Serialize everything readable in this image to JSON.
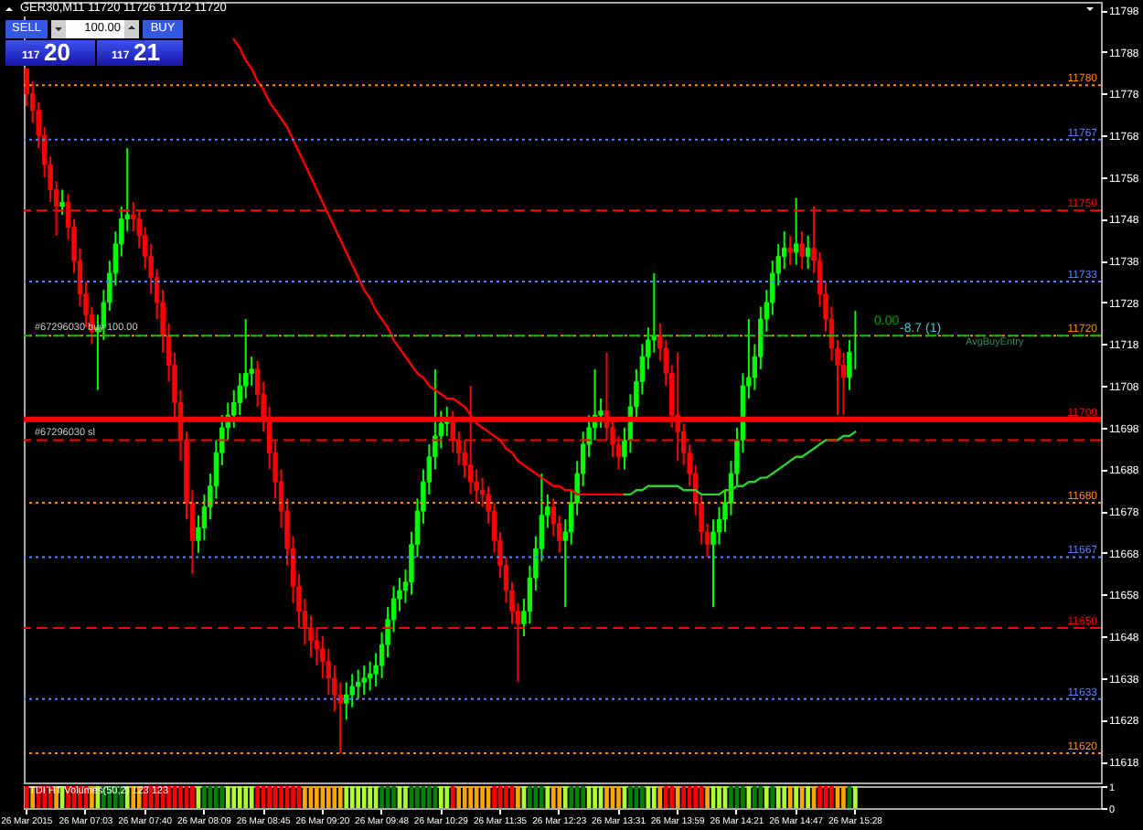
{
  "chart_data": [
    {
      "type": "candlestick",
      "title": "GER30,M11  11720 11726 11712 11720",
      "categories": [
        "26 Mar 2015",
        null,
        null,
        null,
        null,
        null,
        null,
        null,
        null,
        null,
        "26 Mar 07:03",
        null,
        null,
        null,
        null,
        null,
        null,
        null,
        null,
        null,
        "26 Mar 07:40",
        null,
        null,
        null,
        null,
        null,
        null,
        null,
        null,
        null,
        "26 Mar 08:09",
        null,
        null,
        null,
        null,
        null,
        null,
        null,
        null,
        null,
        "26 Mar 08:45",
        null,
        null,
        null,
        null,
        null,
        null,
        null,
        null,
        null,
        "26 Mar 09:20",
        null,
        null,
        null,
        null,
        null,
        null,
        null,
        null,
        null,
        "26 Mar 09:48",
        null,
        null,
        null,
        null,
        null,
        null,
        null,
        null,
        null,
        "26 Mar 10:29",
        null,
        null,
        null,
        null,
        null,
        null,
        null,
        null,
        null,
        "26 Mar 11:35",
        null,
        null,
        null,
        null,
        null,
        null,
        null,
        null,
        null,
        "26 Mar 12:23",
        null,
        null,
        null,
        null,
        null,
        null,
        null,
        null,
        null,
        "26 Mar 13:31",
        null,
        null,
        null,
        null,
        null,
        null,
        null,
        null,
        null,
        "26 Mar 13:59",
        null,
        null,
        null,
        null,
        null,
        null,
        null,
        null,
        null,
        "26 Mar 14:21",
        null,
        null,
        null,
        null,
        null,
        null,
        null,
        null,
        null,
        "26 Mar 14:47",
        null,
        null,
        null,
        null,
        null,
        null,
        null,
        null,
        null,
        "26 Mar 15:28",
        null,
        null,
        null,
        null,
        null,
        null,
        null,
        null,
        null,
        null,
        null,
        null,
        null,
        null,
        null,
        null,
        null,
        null,
        null,
        null,
        null,
        null,
        null,
        null,
        null,
        null,
        null,
        null,
        null,
        null,
        null,
        null,
        null,
        null,
        null,
        null,
        null,
        null,
        null,
        null,
        null
      ],
      "ohlc": [
        [
          11784,
          11784,
          11775,
          11778
        ],
        [
          11778,
          11781,
          11771,
          11774
        ],
        [
          11774,
          11776,
          11765,
          11768
        ],
        [
          11768,
          11770,
          11758,
          11761
        ],
        [
          11761,
          11763,
          11752,
          11755
        ],
        [
          11755,
          11757,
          11744,
          11751
        ],
        [
          11751,
          11755,
          11749,
          11752
        ],
        [
          11752,
          11754,
          11743,
          11746
        ],
        [
          11746,
          11748,
          11735,
          11738
        ],
        [
          11738,
          11741,
          11727,
          11730
        ],
        [
          11730,
          11733,
          11722,
          11725
        ],
        [
          11725,
          11727,
          11718,
          11721
        ],
        [
          11721,
          11725,
          11707,
          11722
        ],
        [
          11722,
          11731,
          11719,
          11728
        ],
        [
          11728,
          11738,
          11726,
          11735
        ],
        [
          11735,
          11745,
          11732,
          11742
        ],
        [
          11742,
          11751,
          11739,
          11748
        ],
        [
          11748,
          11765,
          11745,
          11749
        ],
        [
          11749,
          11752,
          11745,
          11748
        ],
        [
          11748,
          11750,
          11741,
          11744
        ],
        [
          11744,
          11746,
          11736,
          11739
        ],
        [
          11739,
          11742,
          11730,
          11734
        ],
        [
          11734,
          11736,
          11724,
          11728
        ],
        [
          11728,
          11731,
          11716,
          11720
        ],
        [
          11720,
          11723,
          11709,
          11713
        ],
        [
          11713,
          11716,
          11700,
          11704
        ],
        [
          11704,
          11707,
          11690,
          11695
        ],
        [
          11695,
          11697,
          11676,
          11680
        ],
        [
          11680,
          11683,
          11663,
          11671
        ],
        [
          11671,
          11677,
          11668,
          11674
        ],
        [
          11674,
          11682,
          11671,
          11679
        ],
        [
          11679,
          11687,
          11676,
          11684
        ],
        [
          11684,
          11695,
          11681,
          11692
        ],
        [
          11692,
          11701,
          11689,
          11698
        ],
        [
          11698,
          11704,
          11695,
          11701
        ],
        [
          11701,
          11707,
          11698,
          11704
        ],
        [
          11704,
          11711,
          11701,
          11708
        ],
        [
          11708,
          11724,
          11705,
          11711
        ],
        [
          11711,
          11715,
          11708,
          11712
        ],
        [
          11712,
          11714,
          11703,
          11706
        ],
        [
          11706,
          11709,
          11697,
          11700
        ],
        [
          11700,
          11703,
          11688,
          11692
        ],
        [
          11692,
          11695,
          11681,
          11685
        ],
        [
          11685,
          11688,
          11674,
          11678
        ],
        [
          11678,
          11681,
          11665,
          11669
        ],
        [
          11669,
          11672,
          11656,
          11660
        ],
        [
          11660,
          11663,
          11650,
          11654
        ],
        [
          11654,
          11657,
          11646,
          11650
        ],
        [
          11650,
          11653,
          11643,
          11647
        ],
        [
          11647,
          11650,
          11641,
          11645
        ],
        [
          11645,
          11648,
          11638,
          11642
        ],
        [
          11642,
          11645,
          11634,
          11638
        ],
        [
          11638,
          11641,
          11630,
          11634
        ],
        [
          11634,
          11637,
          11620,
          11632
        ],
        [
          11632,
          11637,
          11628,
          11634
        ],
        [
          11634,
          11639,
          11631,
          11636
        ],
        [
          11636,
          11640,
          11633,
          11637
        ],
        [
          11637,
          11641,
          11634,
          11638
        ],
        [
          11638,
          11642,
          11635,
          11639
        ],
        [
          11639,
          11644,
          11636,
          11641
        ],
        [
          11641,
          11649,
          11638,
          11646
        ],
        [
          11646,
          11655,
          11643,
          11652
        ],
        [
          11652,
          11660,
          11649,
          11657
        ],
        [
          11657,
          11662,
          11654,
          11659
        ],
        [
          11659,
          11664,
          11656,
          11661
        ],
        [
          11661,
          11673,
          11658,
          11670
        ],
        [
          11670,
          11681,
          11667,
          11678
        ],
        [
          11678,
          11688,
          11675,
          11685
        ],
        [
          11685,
          11694,
          11682,
          11691
        ],
        [
          11691,
          11712,
          11688,
          11696
        ],
        [
          11696,
          11702,
          11693,
          11699
        ],
        [
          11699,
          11703,
          11696,
          11700
        ],
        [
          11700,
          11702,
          11692,
          11695
        ],
        [
          11695,
          11697,
          11689,
          11692
        ],
        [
          11692,
          11695,
          11686,
          11689
        ],
        [
          11689,
          11708,
          11682,
          11685
        ],
        [
          11685,
          11688,
          11680,
          11683
        ],
        [
          11683,
          11686,
          11679,
          11682
        ],
        [
          11682,
          11684,
          11675,
          11678
        ],
        [
          11678,
          11680,
          11668,
          11671
        ],
        [
          11671,
          11673,
          11662,
          11665
        ],
        [
          11665,
          11667,
          11656,
          11659
        ],
        [
          11659,
          11661,
          11651,
          11654
        ],
        [
          11654,
          11656,
          11637,
          11651
        ],
        [
          11651,
          11657,
          11648,
          11654
        ],
        [
          11654,
          11665,
          11651,
          11662
        ],
        [
          11662,
          11672,
          11659,
          11669
        ],
        [
          11669,
          11687,
          11666,
          11677
        ],
        [
          11677,
          11682,
          11674,
          11679
        ],
        [
          11679,
          11681,
          11672,
          11675
        ],
        [
          11675,
          11677,
          11668,
          11671
        ],
        [
          11671,
          11676,
          11655,
          11673
        ],
        [
          11673,
          11683,
          11670,
          11680
        ],
        [
          11680,
          11690,
          11677,
          11687
        ],
        [
          11687,
          11697,
          11684,
          11694
        ],
        [
          11694,
          11701,
          11691,
          11698
        ],
        [
          11698,
          11712,
          11695,
          11701
        ],
        [
          11701,
          11705,
          11698,
          11702
        ],
        [
          11702,
          11716,
          11695,
          11698
        ],
        [
          11698,
          11700,
          11691,
          11694
        ],
        [
          11694,
          11696,
          11688,
          11691
        ],
        [
          11691,
          11698,
          11688,
          11695
        ],
        [
          11695,
          11706,
          11692,
          11703
        ],
        [
          11703,
          11712,
          11700,
          11709
        ],
        [
          11709,
          11718,
          11706,
          11715
        ],
        [
          11715,
          11722,
          11712,
          11719
        ],
        [
          11719,
          11735,
          11716,
          11720
        ],
        [
          11720,
          11723,
          11714,
          11717
        ],
        [
          11717,
          11719,
          11708,
          11711
        ],
        [
          11711,
          11713,
          11698,
          11701
        ],
        [
          11701,
          11716,
          11690,
          11697
        ],
        [
          11697,
          11699,
          11689,
          11692
        ],
        [
          11692,
          11694,
          11684,
          11687
        ],
        [
          11687,
          11689,
          11677,
          11680
        ],
        [
          11680,
          11682,
          11670,
          11673
        ],
        [
          11673,
          11675,
          11667,
          11670
        ],
        [
          11670,
          11676,
          11655,
          11673
        ],
        [
          11673,
          11679,
          11670,
          11676
        ],
        [
          11676,
          11683,
          11673,
          11680
        ],
        [
          11680,
          11690,
          11677,
          11687
        ],
        [
          11687,
          11698,
          11684,
          11695
        ],
        [
          11695,
          11711,
          11692,
          11708
        ],
        [
          11708,
          11724,
          11705,
          11710
        ],
        [
          11710,
          11718,
          11707,
          11715
        ],
        [
          11715,
          11727,
          11712,
          11724
        ],
        [
          11724,
          11731,
          11721,
          11728
        ],
        [
          11728,
          11738,
          11725,
          11735
        ],
        [
          11735,
          11742,
          11732,
          11739
        ],
        [
          11739,
          11745,
          11736,
          11741
        ],
        [
          11741,
          11744,
          11737,
          11740
        ],
        [
          11740,
          11753,
          11737,
          11742
        ],
        [
          11742,
          11745,
          11736,
          11739
        ],
        [
          11739,
          11744,
          11736,
          11741
        ],
        [
          11741,
          11751,
          11735,
          11738
        ],
        [
          11738,
          11740,
          11727,
          11730
        ],
        [
          11730,
          11733,
          11721,
          11724
        ],
        [
          11724,
          11727,
          11714,
          11717
        ],
        [
          11717,
          11719,
          11701,
          11713
        ],
        [
          11713,
          11716,
          11701,
          11710
        ],
        [
          11710,
          11719,
          11707,
          11716
        ],
        [
          11720,
          11726,
          11712,
          11720
        ],
        null,
        null,
        null,
        null,
        null,
        null,
        null,
        null,
        null,
        null,
        null,
        null,
        null,
        null,
        null,
        null,
        null,
        null,
        null,
        null,
        null,
        null,
        null,
        null,
        null,
        null,
        null,
        null,
        null,
        null,
        null,
        null,
        null,
        null,
        null,
        null,
        null,
        null,
        null,
        null,
        null
      ],
      "colors": [
        "#ff0000",
        "#ff0000",
        "#ff0000",
        "#ff0000",
        "#ff0000",
        "#ff0000",
        "#00ff00",
        "#ff0000",
        "#ff0000",
        "#ff0000",
        "#ff0000",
        "#ff0000",
        "#00ff00",
        "#00ff00",
        "#00ff00",
        "#00ff00",
        "#00ff00",
        "#00ff00",
        "#ff0000",
        "#ff0000",
        "#ff0000",
        "#ff0000",
        "#ff0000",
        "#ff0000",
        "#ff0000",
        "#ff0000",
        "#ff0000",
        "#ff0000",
        "#ff0000",
        "#00ff00",
        "#00ff00",
        "#00ff00",
        "#00ff00",
        "#00ff00",
        "#00ff00",
        "#00ff00",
        "#00ff00",
        "#00ff00",
        "#00ff00",
        "#ff0000",
        "#ff0000",
        "#ff0000",
        "#ff0000",
        "#ff0000",
        "#ff0000",
        "#ff0000",
        "#ff0000",
        "#ff0000",
        "#ff0000",
        "#ff0000",
        "#ff0000",
        "#ff0000",
        "#ff0000",
        "#ff0000",
        "#00ff00",
        "#00ff00",
        "#00ff00",
        "#00ff00",
        "#00ff00",
        "#00ff00",
        "#00ff00",
        "#00ff00",
        "#00ff00",
        "#00ff00",
        "#00ff00",
        "#00ff00",
        "#00ff00",
        "#00ff00",
        "#00ff00",
        "#00ff00",
        "#00ff00",
        "#00ff00",
        "#ff0000",
        "#ff0000",
        "#ff0000",
        "#ff0000",
        "#ff0000",
        "#ff0000",
        "#ff0000",
        "#ff0000",
        "#ff0000",
        "#ff0000",
        "#ff0000",
        "#ff0000",
        "#00ff00",
        "#00ff00",
        "#00ff00",
        "#00ff00",
        "#00ff00",
        "#ff0000",
        "#ff0000",
        "#00ff00",
        "#00ff00",
        "#00ff00",
        "#00ff00",
        "#00ff00",
        "#00ff00",
        "#00ff00",
        "#ff0000",
        "#ff0000",
        "#ff0000",
        "#00ff00",
        "#00ff00",
        "#00ff00",
        "#00ff00",
        "#00ff00",
        "#00ff00",
        "#ff0000",
        "#ff0000",
        "#ff0000",
        "#ff0000",
        "#ff0000",
        "#ff0000",
        "#ff0000",
        "#ff0000",
        "#ff0000",
        "#00ff00",
        "#00ff00",
        "#00ff00",
        "#00ff00",
        "#00ff00",
        "#00ff00",
        "#00ff00",
        "#00ff00",
        "#00ff00",
        "#00ff00",
        "#00ff00",
        "#00ff00",
        "#00ff00",
        "#ff0000",
        "#00ff00",
        "#ff0000",
        "#00ff00",
        "#ff0000",
        "#ff0000",
        "#ff0000",
        "#ff0000",
        "#ff0000",
        "#ff0000",
        "#00ff00",
        "#00ff00",
        null,
        null,
        null,
        null,
        null,
        null,
        null,
        null,
        null,
        null,
        null,
        null,
        null,
        null,
        null,
        null,
        null,
        null,
        null,
        null,
        null,
        null,
        null,
        null,
        null,
        null,
        null,
        null,
        null,
        null,
        null,
        null,
        null,
        null,
        null,
        null,
        null,
        null,
        null,
        null,
        null
      ],
      "series": [
        {
          "type": "line",
          "color": "#ff0000",
          "values": [
            null,
            null,
            null,
            null,
            null,
            null,
            null,
            null,
            null,
            null,
            null,
            null,
            null,
            null,
            null,
            null,
            null,
            null,
            null,
            null,
            null,
            null,
            null,
            null,
            null,
            null,
            null,
            null,
            null,
            null,
            null,
            null,
            null,
            null,
            null,
            11791,
            11789,
            11786,
            11784,
            11781,
            11779,
            11776,
            11774,
            11772,
            11770,
            11767,
            11764,
            11761,
            11758,
            11755,
            11752,
            11749,
            11746,
            11743,
            11740,
            11737,
            11734,
            11731,
            11729,
            11726,
            11724,
            11722,
            11719,
            11717,
            11715,
            11713,
            11711,
            11710,
            11708,
            11707,
            11706,
            11705,
            11705,
            11704,
            11703,
            11701,
            11699,
            11698,
            11697,
            11696,
            11695,
            11693,
            11692,
            11690,
            11689,
            11688,
            11687,
            11686,
            11685,
            11684,
            11684,
            11683,
            11683,
            11682,
            11682,
            11682,
            11682,
            11682,
            11682,
            11682,
            11682,
            11682,
            null,
            null,
            null,
            null,
            null,
            null,
            null,
            null,
            null,
            null,
            null,
            null,
            null,
            null,
            null,
            null,
            null,
            null,
            null,
            null,
            null,
            null,
            null,
            null,
            null,
            null,
            null,
            null,
            null,
            null,
            null,
            null,
            null,
            null,
            null,
            null,
            null,
            null,
            null,
            null,
            null,
            null,
            null,
            null,
            null,
            null,
            null,
            null,
            null,
            null,
            null,
            null,
            null,
            null,
            null,
            null,
            null,
            null,
            null,
            null,
            null,
            null,
            null,
            null,
            null,
            null,
            null,
            null,
            null,
            null,
            null,
            null,
            null,
            null,
            null,
            null,
            null,
            null,
            null,
            null
          ]
        },
        {
          "type": "line",
          "color": "#32cd32",
          "values": [
            null,
            null,
            null,
            null,
            null,
            null,
            null,
            null,
            null,
            null,
            null,
            null,
            null,
            null,
            null,
            null,
            null,
            null,
            null,
            null,
            null,
            null,
            null,
            null,
            null,
            null,
            null,
            null,
            null,
            null,
            null,
            null,
            null,
            null,
            null,
            null,
            null,
            null,
            null,
            null,
            null,
            null,
            null,
            null,
            null,
            null,
            null,
            null,
            null,
            null,
            null,
            null,
            null,
            null,
            null,
            null,
            null,
            null,
            null,
            null,
            null,
            null,
            null,
            null,
            null,
            null,
            null,
            null,
            null,
            null,
            null,
            null,
            null,
            null,
            null,
            null,
            null,
            null,
            null,
            null,
            null,
            null,
            null,
            null,
            null,
            null,
            null,
            null,
            null,
            null,
            null,
            null,
            null,
            null,
            null,
            null,
            null,
            null,
            null,
            null,
            null,
            11682,
            11682,
            11683,
            11683,
            11684,
            11684,
            11684,
            11684,
            11684,
            11684,
            11683,
            11683,
            11683,
            11682,
            11682,
            11682,
            11682,
            11683,
            11683,
            11684,
            11684,
            11685,
            11685,
            11686,
            11686,
            11687,
            11688,
            11689,
            11690,
            11691,
            11691,
            11692,
            11693,
            11694,
            11695,
            11695,
            11695,
            11696,
            11696,
            11697,
            null,
            null,
            null,
            null,
            null,
            null,
            null,
            null,
            null,
            null,
            null,
            null,
            null,
            null,
            null,
            null,
            null,
            null,
            null,
            null,
            null,
            null,
            null,
            null,
            null,
            null,
            null,
            null,
            null,
            null,
            null,
            null,
            null,
            null,
            null,
            null,
            null,
            null,
            null,
            null,
            null
          ]
        }
      ],
      "ylim": [
        11613,
        11800
      ],
      "yticks": [
        11618,
        11628,
        11638,
        11648,
        11658,
        11668,
        11678,
        11688,
        11698,
        11708,
        11718,
        11728,
        11738,
        11748,
        11758,
        11768,
        11778,
        11788,
        11798
      ],
      "ref_lines": [
        {
          "axis": "y",
          "value": 11780,
          "label": "11780",
          "color": "#ff8c00",
          "line_style": "dotted"
        },
        {
          "axis": "y",
          "value": 11767,
          "label": "11767",
          "color": "#5a82ff",
          "line_style": "dotted"
        },
        {
          "axis": "y",
          "value": 11750,
          "label": "11750",
          "color": "#ff0000",
          "line_style": "dashed"
        },
        {
          "axis": "y",
          "value": 11733,
          "label": "11733",
          "color": "#5a82ff",
          "line_style": "dotted"
        },
        {
          "axis": "y",
          "value": 11720,
          "label": "11720",
          "color": "#ff8c00",
          "line_style": "dotted"
        },
        {
          "axis": "y",
          "value": 11720,
          "color": "#00c000",
          "line_style": "dashed"
        },
        {
          "axis": "y",
          "value": 11700,
          "label": "11700",
          "color": "#ff0000",
          "line_style": "solid"
        },
        {
          "axis": "y",
          "value": 11695,
          "color": "#ff0000",
          "line_style": "dashed"
        },
        {
          "axis": "y",
          "value": 11680,
          "label": "11680",
          "color": "#ff8c00",
          "line_style": "dotted"
        },
        {
          "axis": "y",
          "value": 11667,
          "label": "11667",
          "color": "#5a82ff",
          "line_style": "dotted"
        },
        {
          "axis": "y",
          "value": 11650,
          "label": "11650",
          "color": "#ff0000",
          "line_style": "dashed"
        },
        {
          "axis": "y",
          "value": 11633,
          "label": "11633",
          "color": "#5a82ff",
          "line_style": "dotted"
        },
        {
          "axis": "y",
          "value": 11620,
          "label": "11620",
          "color": "#ff8c00",
          "line_style": "dotted"
        }
      ],
      "annotations": [
        {
          "text": "#67296030 buy 100.00",
          "y": 11720
        },
        {
          "text": "#67296030 sl",
          "y": 11695
        },
        {
          "text": "0.00",
          "y": 11720
        },
        {
          "text": "-8.7 (1)",
          "y": 11720
        },
        {
          "text": "AvgBuyEntry",
          "y": 11720
        },
        "SELL",
        "100.00",
        "BUY",
        "117",
        "20",
        "117",
        "21"
      ]
    },
    {
      "type": "bar",
      "title": "TDI HT Volumes(50,2) 123 123",
      "categories": [
        null,
        null,
        null,
        null,
        null,
        null,
        null,
        null,
        null,
        null,
        null,
        null,
        null,
        null,
        null,
        null,
        null,
        null,
        null,
        null,
        null,
        null,
        null,
        null,
        null,
        null,
        null,
        null,
        null,
        null,
        null,
        null,
        null,
        null,
        null,
        null,
        null,
        null,
        null,
        null,
        null,
        null,
        null,
        null,
        null,
        null,
        null,
        null,
        null,
        null,
        null,
        null,
        null,
        null,
        null,
        null,
        null,
        null,
        null,
        null,
        null,
        null,
        null,
        null,
        null,
        null,
        null,
        null,
        null,
        null,
        null,
        null,
        null,
        null,
        null,
        null,
        null,
        null,
        null,
        null,
        null,
        null,
        null,
        null,
        null,
        null,
        null,
        null,
        null,
        null,
        null,
        null,
        null,
        null,
        null,
        null,
        null,
        null,
        null,
        null,
        null,
        null,
        null,
        null,
        null,
        null,
        null,
        null,
        null,
        null,
        null,
        null,
        null,
        null,
        null,
        null,
        null,
        null,
        null,
        null,
        null,
        null,
        null,
        null,
        null,
        null,
        null,
        null,
        null,
        null,
        null,
        null,
        null,
        null,
        null,
        null,
        null,
        null,
        null,
        null,
        null,
        null,
        null,
        null,
        null,
        null,
        null,
        null,
        null,
        null,
        null,
        null,
        null,
        null,
        null,
        null,
        null,
        null,
        null,
        null,
        null,
        null,
        null,
        null,
        null,
        null,
        null,
        null,
        null,
        null,
        null,
        null,
        null,
        null,
        null,
        null,
        null,
        null,
        null,
        null,
        null,
        null
      ],
      "tick_labels": "y",
      "values": [
        1,
        1,
        1,
        1,
        1,
        1,
        1,
        1,
        1,
        1,
        1,
        1,
        1,
        1,
        1,
        1,
        1,
        1,
        1,
        1,
        1,
        1,
        1,
        1,
        1,
        1,
        1,
        1,
        1,
        1,
        1,
        1,
        1,
        1,
        1,
        1,
        1,
        1,
        1,
        1,
        1,
        1,
        1,
        1,
        1,
        1,
        1,
        1,
        1,
        1,
        1,
        1,
        1,
        1,
        1,
        1,
        1,
        1,
        1,
        1,
        1,
        1,
        1,
        1,
        1,
        1,
        1,
        1,
        1,
        1,
        1,
        1,
        1,
        1,
        1,
        1,
        1,
        1,
        1,
        1,
        1,
        1,
        1,
        1,
        1,
        1,
        1,
        1,
        1,
        1,
        1,
        1,
        1,
        1,
        1,
        1,
        1,
        1,
        1,
        1,
        1,
        1,
        1,
        1,
        1,
        1,
        1,
        1,
        1,
        1,
        1,
        1,
        1,
        1,
        1,
        1,
        1,
        1,
        1,
        1,
        1,
        1,
        1,
        1,
        1,
        1,
        1,
        1,
        1,
        1,
        1,
        1,
        1,
        1,
        1,
        1,
        1,
        1,
        1,
        1,
        1,
        null,
        null,
        null,
        null,
        null,
        null,
        null,
        null,
        null,
        null,
        null,
        null,
        null,
        null,
        null,
        null,
        null,
        null,
        null,
        null,
        null,
        null,
        null,
        null,
        null,
        null,
        null,
        null,
        null,
        null,
        null,
        null,
        null,
        null,
        null,
        null,
        null,
        null,
        null,
        null,
        null
      ],
      "colors": [
        "#ff0000",
        "#ffa500",
        "#ff0000",
        "#ff0000",
        "#ff0000",
        "#ffa500",
        "#adff2f",
        "#ff0000",
        "#ff0000",
        "#ff0000",
        "#ff0000",
        "#ffa500",
        "#adff2f",
        "#008000",
        "#008000",
        "#008000",
        "#008000",
        "#adff2f",
        "#ffa500",
        "#ffa500",
        "#ff0000",
        "#ff0000",
        "#ff0000",
        "#ff0000",
        "#ff0000",
        "#ff0000",
        "#ff0000",
        "#ff0000",
        "#ff0000",
        "#adff2f",
        "#008000",
        "#008000",
        "#008000",
        "#008000",
        "#adff2f",
        "#adff2f",
        "#adff2f",
        "#adff2f",
        "#adff2f",
        "#ff0000",
        "#ff0000",
        "#ff0000",
        "#ff0000",
        "#ff0000",
        "#ff0000",
        "#ff0000",
        "#ff0000",
        "#ffa500",
        "#ffa500",
        "#ffa500",
        "#ffa500",
        "#ffa500",
        "#ffa500",
        "#ffa500",
        "#adff2f",
        "#adff2f",
        "#adff2f",
        "#adff2f",
        "#adff2f",
        "#adff2f",
        "#008000",
        "#008000",
        "#008000",
        "#adff2f",
        "#adff2f",
        "#008000",
        "#008000",
        "#008000",
        "#008000",
        "#008000",
        "#adff2f",
        "#adff2f",
        "#ff0000",
        "#ffa500",
        "#ffa500",
        "#ffa500",
        "#ffa500",
        "#ffa500",
        "#ffa500",
        "#ff0000",
        "#ff0000",
        "#ff0000",
        "#ff0000",
        "#ffa500",
        "#adff2f",
        "#008000",
        "#008000",
        "#008000",
        "#adff2f",
        "#ffa500",
        "#ffa500",
        "#adff2f",
        "#008000",
        "#008000",
        "#008000",
        "#adff2f",
        "#adff2f",
        "#adff2f",
        "#ffa500",
        "#ffa500",
        "#ffa500",
        "#adff2f",
        "#008000",
        "#008000",
        "#008000",
        "#adff2f",
        "#adff2f",
        "#ffa500",
        "#ff0000",
        "#ff0000",
        "#ffa500",
        "#ff0000",
        "#ff0000",
        "#ff0000",
        "#ff0000",
        "#ffa500",
        "#adff2f",
        "#adff2f",
        "#adff2f",
        "#008000",
        "#008000",
        "#008000",
        "#adff2f",
        "#008000",
        "#008000",
        "#adff2f",
        "#008000",
        "#adff2f",
        "#adff2f",
        "#ffa500",
        "#adff2f",
        "#ffa500",
        "#adff2f",
        "#ffa500",
        "#ff0000",
        "#ff0000",
        "#ff0000",
        "#ffa500",
        "#ffa500",
        "#008000",
        "#adff2f",
        null,
        null,
        null,
        null,
        null,
        null,
        null,
        null,
        null,
        null,
        null,
        null,
        null,
        null,
        null,
        null,
        null,
        null,
        null,
        null,
        null,
        null,
        null,
        null,
        null,
        null,
        null,
        null,
        null,
        null,
        null,
        null,
        null,
        null,
        null,
        null,
        null,
        null,
        null,
        null,
        null
      ],
      "ylim": [
        0,
        1
      ],
      "yticks": [
        0,
        1
      ]
    }
  ]
}
